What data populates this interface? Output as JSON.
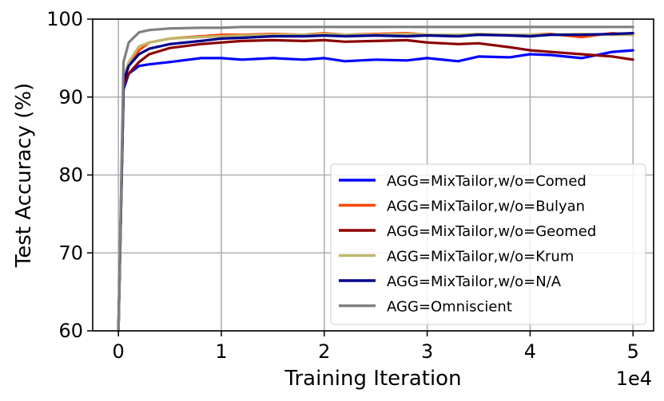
{
  "chart_data": {
    "type": "line",
    "xlabel": "Training Iteration",
    "ylabel": "Test Accuracy (%)",
    "x_offset_label": "1e4",
    "xlim": [
      -2500,
      52000
    ],
    "ylim": [
      60,
      100
    ],
    "xticks": [
      0,
      10000,
      20000,
      30000,
      40000,
      50000
    ],
    "xtick_labels": [
      "0",
      "1",
      "2",
      "3",
      "4",
      "5"
    ],
    "yticks": [
      60,
      70,
      80,
      90,
      100
    ],
    "ytick_labels": [
      "60",
      "70",
      "80",
      "90",
      "100"
    ],
    "grid": true,
    "legend_position": "lower-right",
    "series": [
      {
        "name": "AGG=MixTailor,w/o=Comed",
        "color": "#0000ff",
        "x": [
          0,
          500,
          1000,
          2000,
          3000,
          5000,
          8000,
          10000,
          12000,
          15000,
          18000,
          20000,
          22000,
          25000,
          28000,
          30000,
          33000,
          35000,
          38000,
          40000,
          42000,
          45000,
          48000,
          50000
        ],
        "y": [
          60,
          91,
          93,
          94,
          94.2,
          94.5,
          95,
          95,
          94.8,
          95,
          94.8,
          95,
          94.6,
          94.8,
          94.7,
          95,
          94.6,
          95.2,
          95.1,
          95.5,
          95.4,
          95,
          95.8,
          96
        ]
      },
      {
        "name": "AGG=MixTailor,w/o=Bulyan",
        "color": "#ff4500",
        "x": [
          0,
          500,
          1000,
          2000,
          3000,
          5000,
          8000,
          10000,
          12000,
          15000,
          18000,
          20000,
          22000,
          25000,
          28000,
          30000,
          33000,
          35000,
          38000,
          40000,
          42000,
          45000,
          48000,
          50000
        ],
        "y": [
          60,
          92,
          94,
          96,
          97,
          97.5,
          97.8,
          98,
          98,
          98.1,
          98,
          98.2,
          98,
          98.1,
          98.2,
          98,
          97.8,
          98.1,
          97.9,
          98,
          98.1,
          97.7,
          98.2,
          98
        ]
      },
      {
        "name": "AGG=MixTailor,w/o=Geomed",
        "color": "#8b0000",
        "x": [
          0,
          500,
          1000,
          2000,
          3000,
          5000,
          8000,
          10000,
          12000,
          15000,
          18000,
          20000,
          22000,
          25000,
          28000,
          30000,
          33000,
          35000,
          38000,
          40000,
          42000,
          45000,
          48000,
          50000
        ],
        "y": [
          60,
          91.5,
          93,
          94.5,
          95.5,
          96.3,
          96.8,
          97,
          97.2,
          97.3,
          97.2,
          97.3,
          97.1,
          97.2,
          97.3,
          97,
          96.8,
          96.9,
          96.4,
          96,
          95.8,
          95.5,
          95.2,
          94.8
        ]
      },
      {
        "name": "AGG=MixTailor,w/o=Krum",
        "color": "#bdb76b",
        "x": [
          0,
          500,
          1000,
          2000,
          3000,
          5000,
          8000,
          10000,
          12000,
          15000,
          18000,
          20000,
          22000,
          25000,
          28000,
          30000,
          33000,
          35000,
          38000,
          40000,
          42000,
          45000,
          48000,
          50000
        ],
        "y": [
          60,
          92.5,
          94.5,
          96.5,
          97,
          97.5,
          97.7,
          97.8,
          97.9,
          98,
          98,
          98.1,
          98,
          98,
          98.1,
          98,
          98,
          98.1,
          98,
          98,
          98,
          98.1,
          98,
          98
        ]
      },
      {
        "name": "AGG=MixTailor,w/o=N/A",
        "color": "#00008b",
        "x": [
          0,
          500,
          1000,
          2000,
          3000,
          5000,
          8000,
          10000,
          12000,
          15000,
          18000,
          20000,
          22000,
          25000,
          28000,
          30000,
          33000,
          35000,
          38000,
          40000,
          42000,
          45000,
          48000,
          50000
        ],
        "y": [
          60,
          92,
          94,
          95.5,
          96.2,
          96.8,
          97.2,
          97.5,
          97.6,
          97.8,
          97.8,
          97.9,
          97.8,
          97.9,
          97.8,
          97.9,
          97.8,
          98,
          97.9,
          97.8,
          98,
          98,
          98.1,
          98.2
        ]
      },
      {
        "name": "AGG=Omniscient",
        "color": "#808080",
        "x": [
          0,
          500,
          1000,
          2000,
          3000,
          5000,
          8000,
          10000,
          12000,
          15000,
          18000,
          20000,
          22000,
          25000,
          28000,
          30000,
          33000,
          35000,
          38000,
          40000,
          42000,
          45000,
          48000,
          50000
        ],
        "y": [
          60,
          94.5,
          97,
          98.3,
          98.6,
          98.8,
          98.9,
          98.9,
          99,
          99,
          99,
          99,
          99,
          99,
          99,
          99,
          99,
          99,
          99,
          99,
          99,
          99,
          99,
          99
        ]
      }
    ]
  }
}
